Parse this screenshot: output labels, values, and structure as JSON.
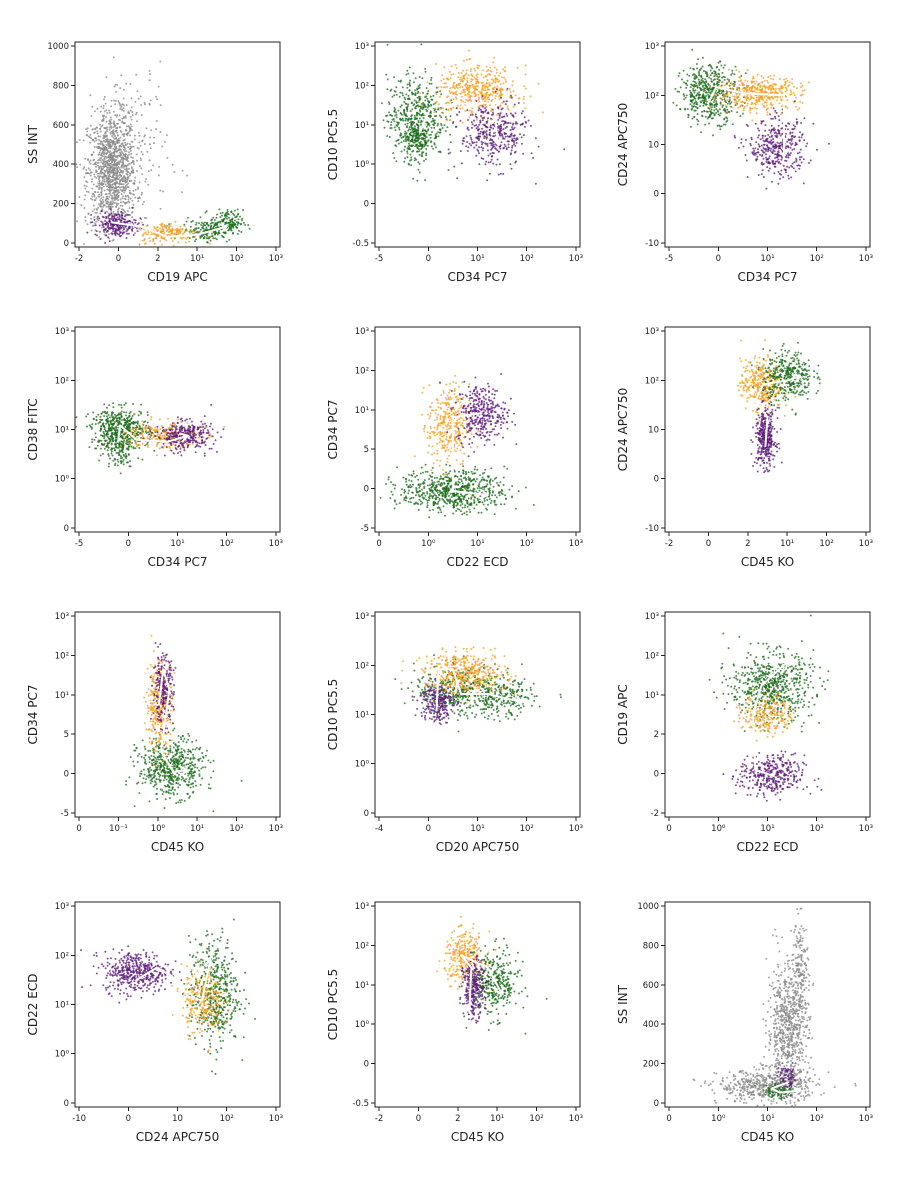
{
  "colors": {
    "grey": "#8a8a8a",
    "green": "#1a6b1a",
    "orange": "#f5a020",
    "purple": "#5c1a7a",
    "arrow": "#ffffff"
  },
  "chart_data": [
    {
      "type": "scatter",
      "xlabel": "CD19 APC",
      "ylabel": "SS INT",
      "xticks": [
        "-2",
        "0",
        "2",
        "10¹",
        "10²",
        "10³"
      ],
      "yticks": [
        "0",
        "200",
        "400",
        "600",
        "800",
        "1000"
      ],
      "xlim": [
        0,
        1
      ],
      "ylim": [
        0,
        1
      ],
      "series": [
        {
          "name": "all events",
          "color": "grey",
          "clusters": [
            {
              "cx": 0.18,
              "cy": 0.37,
              "sx": 0.06,
              "sy": 0.14,
              "n": 1100
            },
            {
              "cx": 0.25,
              "cy": 0.45,
              "sx": 0.1,
              "sy": 0.25,
              "n": 260
            }
          ]
        },
        {
          "name": "green",
          "color": "green",
          "clusters": [
            {
              "cx": 0.64,
              "cy": 0.08,
              "sx": 0.06,
              "sy": 0.025,
              "n": 160
            },
            {
              "cx": 0.74,
              "cy": 0.12,
              "sx": 0.04,
              "sy": 0.03,
              "n": 140
            }
          ]
        },
        {
          "name": "orange",
          "color": "orange",
          "clusters": [
            {
              "cx": 0.46,
              "cy": 0.07,
              "sx": 0.07,
              "sy": 0.025,
              "n": 200
            }
          ]
        },
        {
          "name": "purple",
          "color": "purple",
          "clusters": [
            {
              "cx": 0.2,
              "cy": 0.11,
              "sx": 0.05,
              "sy": 0.03,
              "n": 220
            }
          ]
        }
      ],
      "arrow": [
        [
          0.18,
          0.12
        ],
        [
          0.32,
          0.1
        ],
        [
          0.45,
          0.05
        ],
        [
          0.6,
          0.06
        ],
        [
          0.74,
          0.1
        ]
      ]
    },
    {
      "type": "scatter",
      "xlabel": "CD34 PC7",
      "ylabel": "CD10 PC5.5",
      "xticks": [
        "-5",
        "0",
        "10¹",
        "10²",
        "10³"
      ],
      "yticks": [
        "-0.5",
        "0",
        "10⁰",
        "10¹",
        "10²",
        "10³"
      ],
      "xlim": [
        0,
        1
      ],
      "ylim": [
        0,
        1
      ],
      "series": [
        {
          "name": "green",
          "color": "green",
          "clusters": [
            {
              "cx": 0.2,
              "cy": 0.63,
              "sx": 0.07,
              "sy": 0.1,
              "n": 500
            },
            {
              "cx": 0.2,
              "cy": 0.52,
              "sx": 0.03,
              "sy": 0.05,
              "n": 120
            }
          ]
        },
        {
          "name": "orange",
          "color": "orange",
          "clusters": [
            {
              "cx": 0.5,
              "cy": 0.76,
              "sx": 0.1,
              "sy": 0.06,
              "n": 450
            }
          ]
        },
        {
          "name": "purple",
          "color": "purple",
          "clusters": [
            {
              "cx": 0.58,
              "cy": 0.55,
              "sx": 0.08,
              "sy": 0.08,
              "n": 380
            }
          ]
        }
      ],
      "arrow": [
        [
          0.22,
          0.56
        ],
        [
          0.27,
          0.68
        ],
        [
          0.4,
          0.7
        ],
        [
          0.58,
          0.7
        ],
        [
          0.6,
          0.5
        ]
      ]
    },
    {
      "type": "scatter",
      "xlabel": "CD34 PC7",
      "ylabel": "CD24 APC750",
      "xticks": [
        "-5",
        "0",
        "10¹",
        "10²",
        "10³"
      ],
      "yticks": [
        "-10",
        "0",
        "10",
        "10²",
        "10³"
      ],
      "xlim": [
        0,
        1
      ],
      "ylim": [
        0,
        1
      ],
      "series": [
        {
          "name": "green",
          "color": "green",
          "clusters": [
            {
              "cx": 0.22,
              "cy": 0.75,
              "sx": 0.07,
              "sy": 0.07,
              "n": 500
            }
          ]
        },
        {
          "name": "orange",
          "color": "orange",
          "clusters": [
            {
              "cx": 0.46,
              "cy": 0.75,
              "sx": 0.1,
              "sy": 0.04,
              "n": 420
            }
          ]
        },
        {
          "name": "purple",
          "color": "purple",
          "clusters": [
            {
              "cx": 0.55,
              "cy": 0.48,
              "sx": 0.07,
              "sy": 0.07,
              "n": 380
            }
          ]
        }
      ],
      "arrow": [
        [
          0.21,
          0.7
        ],
        [
          0.25,
          0.78
        ],
        [
          0.38,
          0.75
        ],
        [
          0.58,
          0.74
        ],
        [
          0.58,
          0.44
        ]
      ]
    },
    {
      "type": "scatter",
      "xlabel": "CD34 PC7",
      "ylabel": "CD38 FITC",
      "xticks": [
        "-5",
        "0",
        "10¹",
        "10²",
        "10³"
      ],
      "yticks": [
        "0",
        "10⁰",
        "10¹",
        "10²",
        "10³"
      ],
      "xlim": [
        0,
        1
      ],
      "ylim": [
        0,
        1
      ],
      "series": [
        {
          "name": "green",
          "color": "green",
          "clusters": [
            {
              "cx": 0.22,
              "cy": 0.5,
              "sx": 0.07,
              "sy": 0.05,
              "n": 500
            },
            {
              "cx": 0.22,
              "cy": 0.4,
              "sx": 0.04,
              "sy": 0.04,
              "n": 100
            }
          ]
        },
        {
          "name": "orange",
          "color": "orange",
          "clusters": [
            {
              "cx": 0.43,
              "cy": 0.47,
              "sx": 0.09,
              "sy": 0.035,
              "n": 260
            }
          ]
        },
        {
          "name": "purple",
          "color": "purple",
          "clusters": [
            {
              "cx": 0.53,
              "cy": 0.47,
              "sx": 0.07,
              "sy": 0.035,
              "n": 320
            }
          ]
        }
      ],
      "arrow": [
        [
          0.21,
          0.44
        ],
        [
          0.22,
          0.52
        ],
        [
          0.3,
          0.45
        ],
        [
          0.45,
          0.44
        ],
        [
          0.55,
          0.47
        ]
      ]
    },
    {
      "type": "scatter",
      "xlabel": "CD22 ECD",
      "ylabel": "CD34 PC7",
      "xticks": [
        "0",
        "10⁰",
        "10¹",
        "10²",
        "10³"
      ],
      "yticks": [
        "-5",
        "0",
        "5",
        "10¹",
        "10²",
        "10³"
      ],
      "xlim": [
        0,
        1
      ],
      "ylim": [
        0,
        1
      ],
      "series": [
        {
          "name": "green",
          "color": "green",
          "clusters": [
            {
              "cx": 0.38,
              "cy": 0.2,
              "sx": 0.13,
              "sy": 0.05,
              "n": 650
            }
          ]
        },
        {
          "name": "orange",
          "color": "orange",
          "clusters": [
            {
              "cx": 0.36,
              "cy": 0.52,
              "sx": 0.05,
              "sy": 0.1,
              "n": 340
            }
          ]
        },
        {
          "name": "purple",
          "color": "purple",
          "clusters": [
            {
              "cx": 0.52,
              "cy": 0.58,
              "sx": 0.06,
              "sy": 0.07,
              "n": 340
            }
          ]
        }
      ],
      "arrow": [
        [
          0.52,
          0.58
        ],
        [
          0.38,
          0.56
        ],
        [
          0.38,
          0.2
        ],
        [
          0.55,
          0.18
        ]
      ]
    },
    {
      "type": "scatter",
      "xlabel": "CD45 KO",
      "ylabel": "CD24 APC750",
      "xticks": [
        "-2",
        "0",
        "2",
        "10¹",
        "10²",
        "10³"
      ],
      "yticks": [
        "-10",
        "0",
        "10",
        "10²",
        "10³"
      ],
      "xlim": [
        0,
        1
      ],
      "ylim": [
        0,
        1
      ],
      "series": [
        {
          "name": "orange",
          "color": "orange",
          "clusters": [
            {
              "cx": 0.47,
              "cy": 0.72,
              "sx": 0.05,
              "sy": 0.06,
              "n": 360
            }
          ]
        },
        {
          "name": "green",
          "color": "green",
          "clusters": [
            {
              "cx": 0.6,
              "cy": 0.76,
              "sx": 0.06,
              "sy": 0.06,
              "n": 360
            }
          ]
        },
        {
          "name": "purple",
          "color": "purple",
          "clusters": [
            {
              "cx": 0.49,
              "cy": 0.46,
              "sx": 0.025,
              "sy": 0.07,
              "n": 360
            }
          ]
        }
      ],
      "arrow": [
        [
          0.49,
          0.42
        ],
        [
          0.5,
          0.56
        ],
        [
          0.44,
          0.64
        ],
        [
          0.48,
          0.72
        ],
        [
          0.6,
          0.74
        ],
        [
          0.66,
          0.76
        ]
      ]
    },
    {
      "type": "scatter",
      "xlabel": "CD45 KO",
      "ylabel": "CD34 PC7",
      "xticks": [
        "0",
        "10⁻¹",
        "10⁰",
        "10¹",
        "10²",
        "10³"
      ],
      "yticks": [
        "-5",
        "0",
        "5",
        "10¹",
        "10²",
        "10³"
      ],
      "xlim": [
        0,
        1
      ],
      "ylim": [
        0,
        1
      ],
      "series": [
        {
          "name": "green",
          "color": "green",
          "clusters": [
            {
              "cx": 0.47,
              "cy": 0.24,
              "sx": 0.08,
              "sy": 0.07,
              "n": 560
            }
          ]
        },
        {
          "name": "orange",
          "color": "orange",
          "clusters": [
            {
              "cx": 0.41,
              "cy": 0.55,
              "sx": 0.03,
              "sy": 0.11,
              "n": 320
            }
          ]
        },
        {
          "name": "purple",
          "color": "purple",
          "clusters": [
            {
              "cx": 0.43,
              "cy": 0.62,
              "sx": 0.025,
              "sy": 0.08,
              "n": 260
            }
          ]
        }
      ],
      "arrow": [
        [
          0.41,
          0.55
        ],
        [
          0.43,
          0.72
        ],
        [
          0.46,
          0.62
        ],
        [
          0.42,
          0.32
        ],
        [
          0.48,
          0.22
        ],
        [
          0.55,
          0.23
        ]
      ]
    },
    {
      "type": "scatter",
      "xlabel": "CD20 APC750",
      "ylabel": "CD10 PC5.5",
      "xticks": [
        "-4",
        "0",
        "10¹",
        "10²",
        "10³"
      ],
      "yticks": [
        "0",
        "10⁰",
        "10¹",
        "10²",
        "10³"
      ],
      "xlim": [
        0,
        1
      ],
      "ylim": [
        0,
        1
      ],
      "series": [
        {
          "name": "green",
          "color": "green",
          "clusters": [
            {
              "cx": 0.4,
              "cy": 0.62,
              "sx": 0.1,
              "sy": 0.06,
              "n": 380
            },
            {
              "cx": 0.62,
              "cy": 0.58,
              "sx": 0.08,
              "sy": 0.05,
              "n": 240
            }
          ]
        },
        {
          "name": "orange",
          "color": "orange",
          "clusters": [
            {
              "cx": 0.44,
              "cy": 0.7,
              "sx": 0.1,
              "sy": 0.05,
              "n": 420
            }
          ]
        },
        {
          "name": "purple",
          "color": "purple",
          "clusters": [
            {
              "cx": 0.3,
              "cy": 0.56,
              "sx": 0.04,
              "sy": 0.05,
              "n": 220
            }
          ]
        }
      ],
      "arrow": [
        [
          0.3,
          0.52
        ],
        [
          0.31,
          0.72
        ],
        [
          0.38,
          0.72
        ],
        [
          0.42,
          0.6
        ],
        [
          0.55,
          0.6
        ],
        [
          0.72,
          0.56
        ]
      ]
    },
    {
      "type": "scatter",
      "xlabel": "CD22 ECD",
      "ylabel": "CD19 APC",
      "xticks": [
        "0",
        "10⁰",
        "10¹",
        "10²",
        "10³"
      ],
      "yticks": [
        "-2",
        "0",
        "2",
        "10¹",
        "10²",
        "10³"
      ],
      "xlim": [
        0,
        1
      ],
      "ylim": [
        0,
        1
      ],
      "series": [
        {
          "name": "green",
          "color": "green",
          "clusters": [
            {
              "cx": 0.52,
              "cy": 0.64,
              "sx": 0.1,
              "sy": 0.08,
              "n": 620
            }
          ]
        },
        {
          "name": "orange",
          "color": "orange",
          "clusters": [
            {
              "cx": 0.5,
              "cy": 0.5,
              "sx": 0.06,
              "sy": 0.05,
              "n": 240
            }
          ]
        },
        {
          "name": "purple",
          "color": "purple",
          "clusters": [
            {
              "cx": 0.52,
              "cy": 0.2,
              "sx": 0.08,
              "sy": 0.05,
              "n": 360
            }
          ]
        }
      ],
      "arrow": [
        [
          0.53,
          0.2
        ],
        [
          0.44,
          0.23
        ],
        [
          0.43,
          0.5
        ],
        [
          0.47,
          0.64
        ],
        [
          0.6,
          0.76
        ]
      ]
    },
    {
      "type": "scatter",
      "xlabel": "CD24 APC750",
      "ylabel": "CD22 ECD",
      "xticks": [
        "-10",
        "0",
        "10",
        "10²",
        "10³"
      ],
      "yticks": [
        "0",
        "10⁰",
        "10¹",
        "10²",
        "10³"
      ],
      "xlim": [
        0,
        1
      ],
      "ylim": [
        0,
        1
      ],
      "series": [
        {
          "name": "purple",
          "color": "purple",
          "clusters": [
            {
              "cx": 0.3,
              "cy": 0.66,
              "sx": 0.08,
              "sy": 0.05,
              "n": 440
            }
          ]
        },
        {
          "name": "green",
          "color": "green",
          "clusters": [
            {
              "cx": 0.68,
              "cy": 0.56,
              "sx": 0.06,
              "sy": 0.13,
              "n": 500
            }
          ]
        },
        {
          "name": "orange",
          "color": "orange",
          "clusters": [
            {
              "cx": 0.62,
              "cy": 0.52,
              "sx": 0.05,
              "sy": 0.08,
              "n": 260
            }
          ]
        }
      ],
      "arrow": [
        [
          0.3,
          0.62
        ],
        [
          0.4,
          0.68
        ],
        [
          0.5,
          0.62
        ],
        [
          0.55,
          0.54
        ],
        [
          0.62,
          0.52
        ],
        [
          0.66,
          0.72
        ]
      ]
    },
    {
      "type": "scatter",
      "xlabel": "CD45 KO",
      "ylabel": "CD10 PC5.5",
      "xticks": [
        "-2",
        "0",
        "2",
        "10¹",
        "10²",
        "10³"
      ],
      "yticks": [
        "-0.5",
        "0",
        "10⁰",
        "10¹",
        "10²",
        "10³"
      ],
      "xlim": [
        0,
        1
      ],
      "ylim": [
        0,
        1
      ],
      "series": [
        {
          "name": "orange",
          "color": "orange",
          "clusters": [
            {
              "cx": 0.44,
              "cy": 0.73,
              "sx": 0.05,
              "sy": 0.06,
              "n": 300
            }
          ]
        },
        {
          "name": "green",
          "color": "green",
          "clusters": [
            {
              "cx": 0.58,
              "cy": 0.6,
              "sx": 0.06,
              "sy": 0.08,
              "n": 360
            }
          ]
        },
        {
          "name": "purple",
          "color": "purple",
          "clusters": [
            {
              "cx": 0.48,
              "cy": 0.58,
              "sx": 0.025,
              "sy": 0.07,
              "n": 280
            }
          ]
        }
      ],
      "arrow": [
        [
          0.46,
          0.46
        ],
        [
          0.47,
          0.68
        ],
        [
          0.42,
          0.74
        ],
        [
          0.55,
          0.68
        ],
        [
          0.62,
          0.55
        ]
      ]
    },
    {
      "type": "scatter",
      "xlabel": "CD45 KO",
      "ylabel": "SS INT",
      "xticks": [
        "0",
        "10⁰",
        "10¹",
        "10²",
        "10³"
      ],
      "yticks": [
        "0",
        "200",
        "400",
        "600",
        "800",
        "1000"
      ],
      "xlim": [
        0,
        1
      ],
      "ylim": [
        0,
        1
      ],
      "series": [
        {
          "name": "all events",
          "color": "grey",
          "clusters": [
            {
              "cx": 0.6,
              "cy": 0.38,
              "sx": 0.05,
              "sy": 0.16,
              "n": 700
            },
            {
              "cx": 0.5,
              "cy": 0.1,
              "sx": 0.12,
              "sy": 0.04,
              "n": 500
            },
            {
              "cx": 0.66,
              "cy": 0.68,
              "sx": 0.02,
              "sy": 0.12,
              "n": 160
            }
          ]
        },
        {
          "name": "green",
          "color": "green",
          "clusters": [
            {
              "cx": 0.56,
              "cy": 0.08,
              "sx": 0.04,
              "sy": 0.02,
              "n": 90
            }
          ]
        },
        {
          "name": "purple",
          "color": "purple",
          "clusters": [
            {
              "cx": 0.6,
              "cy": 0.14,
              "sx": 0.025,
              "sy": 0.03,
              "n": 70
            }
          ]
        }
      ],
      "arrow": [
        [
          0.6,
          0.12
        ],
        [
          0.52,
          0.09
        ],
        [
          0.56,
          0.07
        ],
        [
          0.66,
          0.08
        ]
      ]
    }
  ]
}
